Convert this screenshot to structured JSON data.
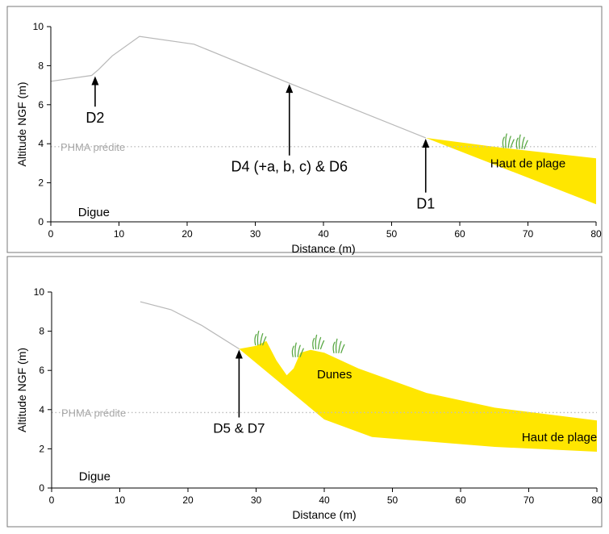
{
  "chart_data": [
    {
      "type": "line",
      "xlabel": "Distance (m)",
      "ylabel": "Altitude NGF (m)",
      "xlim": [
        0,
        80
      ],
      "ylim": [
        0,
        10
      ],
      "xticks": [
        0,
        10,
        20,
        30,
        40,
        50,
        60,
        70,
        80
      ],
      "yticks": [
        0,
        2,
        4,
        6,
        8,
        10
      ],
      "grid": false,
      "series": [
        {
          "kind": "profile",
          "x": [
            0,
            6,
            7,
            9,
            13,
            21,
            35,
            55
          ],
          "y": [
            7.2,
            7.5,
            7.8,
            8.5,
            9.5,
            9.1,
            7.1,
            4.3
          ]
        },
        {
          "kind": "sand",
          "x": [
            55,
            80,
            80,
            66
          ],
          "y": [
            4.3,
            0.9,
            3.25,
            3.8
          ]
        }
      ],
      "reference_line": {
        "label": "PHMA prédite",
        "y": 3.85
      },
      "annotations": [
        {
          "text": "D2",
          "x": 6.5,
          "y_tip": 7.5,
          "y_base": 5.9
        },
        {
          "text": "D4 (+a, b, c) & D6",
          "x": 35,
          "y_tip": 7.1,
          "y_base": 3.4
        },
        {
          "text": "D1",
          "x": 55,
          "y_tip": 4.3,
          "y_base": 1.5
        }
      ],
      "region_labels": [
        {
          "text": "Haut de plage",
          "x": 70,
          "y": 3.0
        },
        {
          "text": "Digue",
          "x": 4,
          "y": 0.5
        }
      ],
      "vegetation": [
        {
          "x": 67,
          "y": 3.8
        },
        {
          "x": 69,
          "y": 3.75
        }
      ],
      "colors": {
        "profile": "#b8b8b8",
        "sand": "#ffe600",
        "phma": "#bdbdbd",
        "grass": "#5aa845"
      }
    },
    {
      "type": "line",
      "xlabel": "Distance (m)",
      "ylabel": "Altitude NGF (m)",
      "xlim": [
        0,
        80
      ],
      "ylim": [
        0,
        10
      ],
      "xticks": [
        0,
        10,
        20,
        30,
        40,
        50,
        60,
        70,
        80
      ],
      "yticks": [
        0,
        2,
        4,
        6,
        8,
        10
      ],
      "grid": false,
      "series": [
        {
          "kind": "profile",
          "x": [
            13,
            17.5,
            22,
            27.5
          ],
          "y": [
            9.5,
            9.1,
            8.3,
            7.1
          ]
        },
        {
          "kind": "sand",
          "x": [
            27.5,
            30,
            31.5,
            33,
            34.5,
            35.5,
            36.5,
            38,
            40,
            45,
            55,
            65,
            80,
            80,
            65,
            47,
            40,
            27.5
          ],
          "y": [
            7.1,
            7.25,
            7.5,
            6.5,
            5.75,
            6.1,
            6.9,
            7.05,
            6.9,
            6.1,
            4.85,
            4.1,
            3.45,
            1.85,
            2.1,
            2.6,
            3.5,
            7.1
          ]
        }
      ],
      "reference_line": {
        "label": "PHMA prédite",
        "y": 3.85
      },
      "annotations": [
        {
          "text": "D5 & D7",
          "x": 27.5,
          "y_tip": 7.1,
          "y_base": 3.6
        }
      ],
      "region_labels": [
        {
          "text": "Dunes",
          "x": 41.5,
          "y": 5.8
        },
        {
          "text": "Haut de plage",
          "x": 74.5,
          "y": 2.6
        },
        {
          "text": "Digue",
          "x": 4,
          "y": 0.6
        }
      ],
      "vegetation": [
        {
          "x": 30.5,
          "y": 7.3
        },
        {
          "x": 36,
          "y": 6.7
        },
        {
          "x": 39,
          "y": 7.1
        },
        {
          "x": 42,
          "y": 6.9
        }
      ],
      "colors": {
        "profile": "#b8b8b8",
        "sand": "#ffe600",
        "phma": "#bdbdbd",
        "grass": "#5aa845"
      }
    }
  ]
}
